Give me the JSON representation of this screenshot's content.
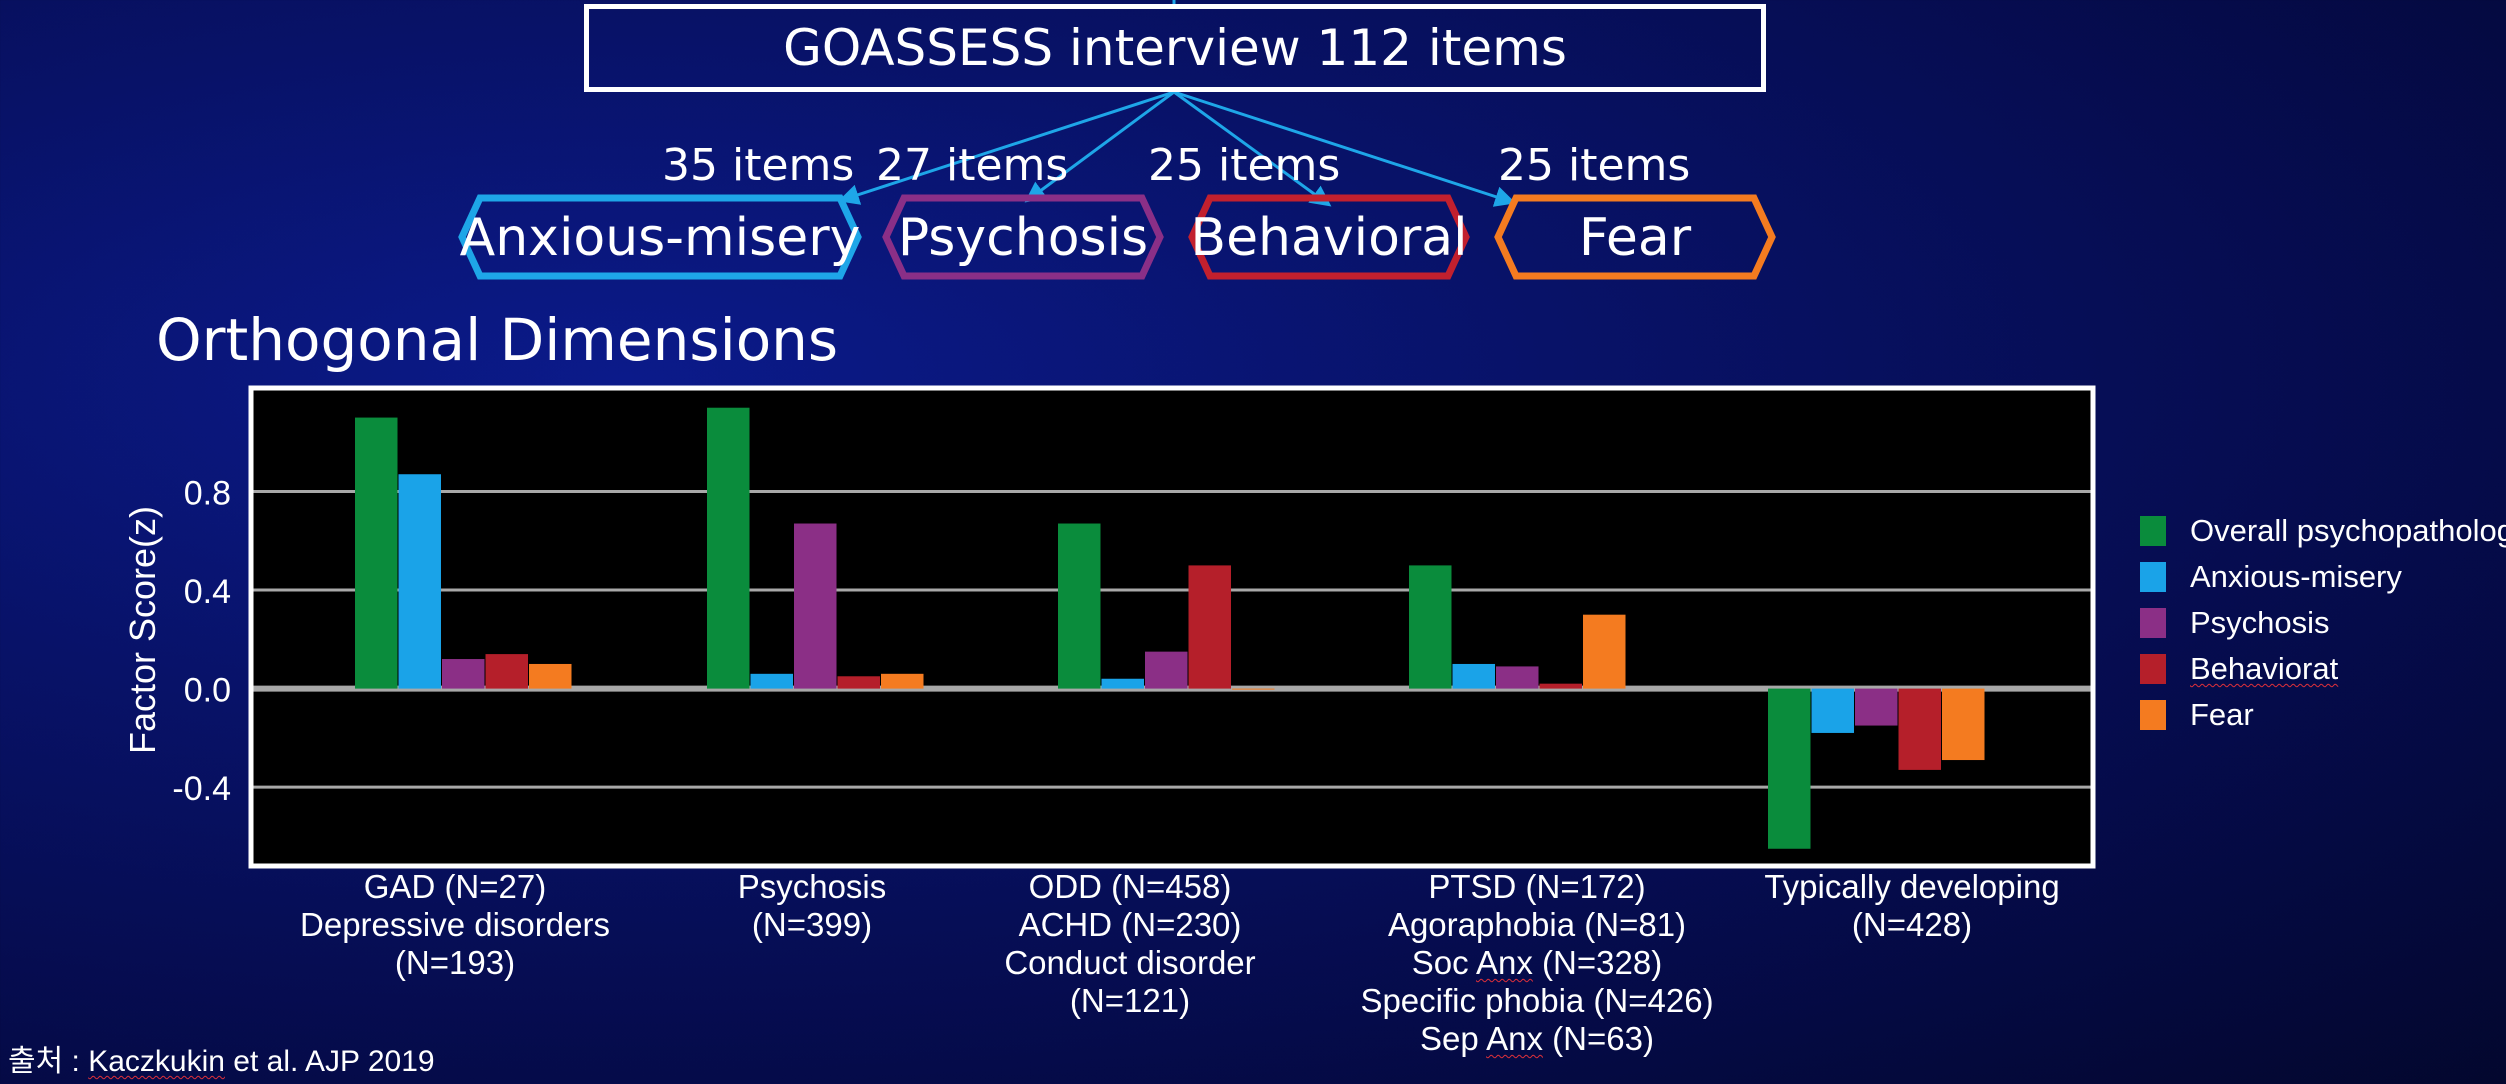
{
  "header": {
    "title": "GOASSESS interview 112 items",
    "dimensions": [
      {
        "count": "35 items",
        "label": "Anxious-misery",
        "color": "#1ea6e8"
      },
      {
        "count": "27 items",
        "label": "Psychosis",
        "color": "#8a2f87"
      },
      {
        "count": "25 items",
        "label": "Behavioral",
        "color": "#c2202e"
      },
      {
        "count": "25 items",
        "label": "Fear",
        "color": "#f47b20"
      }
    ]
  },
  "section_title": "Orthogonal Dimensions",
  "chart_data": {
    "type": "bar",
    "ylabel": "Factor Score(z)",
    "ylim": [
      -0.72,
      1.22
    ],
    "yticks": [
      0.8,
      0.4,
      0.0,
      -0.4
    ],
    "ytick_labels": [
      "0.8",
      "0.4",
      "0.0",
      "-0.4"
    ],
    "grid": true,
    "legend_position": "right",
    "categories": [
      [
        "GAD (N=27)",
        "Depressive disorders",
        "(N=193)"
      ],
      [
        "Psychosis",
        "(N=399)"
      ],
      [
        "ODD (N=458)",
        "ACHD (N=230)",
        "Conduct disorder",
        "(N=121)"
      ],
      [
        "PTSD (N=172)",
        "Agoraphobia (N=81)",
        "Soc Anx (N=328)",
        "Specific phobia (N=426)",
        "Sep Anx (N=63)"
      ],
      [
        "Typically developing",
        "(N=428)"
      ]
    ],
    "series": [
      {
        "name": "Overall psychopathology",
        "color": "#0a8c3c",
        "values": [
          1.1,
          1.14,
          0.67,
          0.5,
          -0.65
        ]
      },
      {
        "name": "Anxious-misery",
        "color": "#1aa3e8",
        "values": [
          0.87,
          0.06,
          0.04,
          0.1,
          -0.18
        ]
      },
      {
        "name": "Psychosis",
        "color": "#8b2f86",
        "values": [
          0.12,
          0.67,
          0.15,
          0.09,
          -0.15
        ]
      },
      {
        "name": "Behaviorat",
        "color": "#b51f2a",
        "values": [
          0.14,
          0.05,
          0.5,
          0.02,
          -0.33
        ]
      },
      {
        "name": "Fear",
        "color": "#f47b20",
        "values": [
          0.1,
          0.06,
          0.0,
          0.3,
          -0.29
        ]
      }
    ]
  },
  "source": {
    "prefix": "출처 : ",
    "author": "Kaczkukin",
    "rest": " et al. AJP 2019"
  }
}
